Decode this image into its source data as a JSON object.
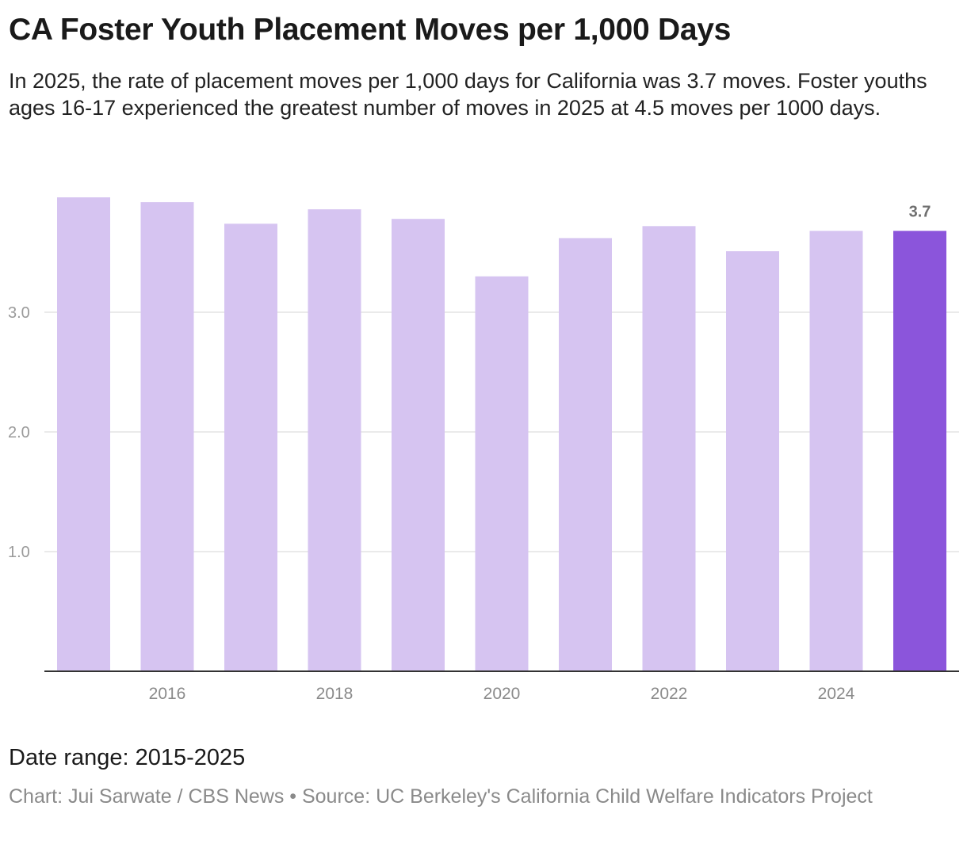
{
  "header": {
    "title": "CA Foster Youth Placement Moves per 1,000 Days",
    "subtitle": "In 2025, the rate of placement moves per 1,000 days for California was 3.7 moves. Foster youths ages 16-17 experienced the greatest number of moves in 2025 at 4.5 moves per 1000 days."
  },
  "footer": {
    "date_range": "Date range: 2015-2025",
    "credits": "Chart: Jui Sarwate / CBS News • Source: UC Berkeley's California Child Welfare Indicators Project"
  },
  "colors": {
    "bar": "#d6c4f1",
    "highlight": "#8b55db"
  },
  "chart_data": {
    "type": "bar",
    "categories": [
      "2015",
      "2016",
      "2017",
      "2018",
      "2019",
      "2020",
      "2021",
      "2022",
      "2023",
      "2024",
      "2025"
    ],
    "values": [
      3.96,
      3.92,
      3.74,
      3.86,
      3.78,
      3.3,
      3.62,
      3.72,
      3.51,
      3.68,
      3.68
    ],
    "ylim": [
      0,
      4.0
    ],
    "yticks": [
      {
        "value": 1.0,
        "label": "1.0"
      },
      {
        "value": 2.0,
        "label": "2.0"
      },
      {
        "value": 3.0,
        "label": "3.0"
      }
    ],
    "xticks": [
      "2016",
      "2018",
      "2020",
      "2022",
      "2024"
    ],
    "highlight": {
      "category": "2025",
      "label": "3.7"
    },
    "grid": true,
    "legend": "none",
    "xlabel": "",
    "ylabel": ""
  }
}
